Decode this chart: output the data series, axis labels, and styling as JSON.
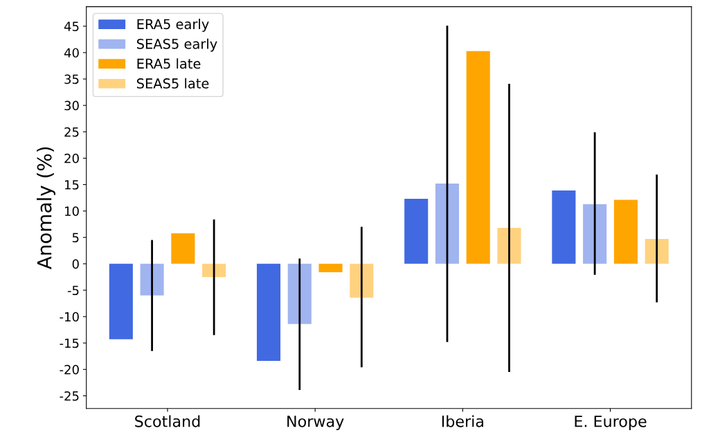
{
  "chart_data": {
    "type": "bar",
    "ylabel": "Anomaly (%)",
    "categories": [
      "Scotland",
      "Norway",
      "Iberia",
      "E. Europe"
    ],
    "series": [
      {
        "name": "ERA5 early",
        "color": "#4169e1",
        "values": [
          -14.3,
          -18.4,
          12.3,
          13.9
        ]
      },
      {
        "name": "SEAS5 early",
        "color": "#a0b4f0",
        "values": [
          -6.0,
          -11.4,
          15.2,
          11.3
        ],
        "errors": [
          [
            -16.5,
            4.5
          ],
          [
            -23.9,
            1.0
          ],
          [
            -14.8,
            45.1
          ],
          [
            -2.1,
            24.9
          ]
        ]
      },
      {
        "name": "ERA5 late",
        "color": "#ffa500",
        "values": [
          5.8,
          -1.6,
          40.3,
          12.1
        ]
      },
      {
        "name": "SEAS5 late",
        "color": "#ffd280",
        "values": [
          -2.5,
          -6.4,
          6.8,
          4.7
        ],
        "errors": [
          [
            -13.5,
            8.4
          ],
          [
            -19.6,
            7.0
          ],
          [
            -20.5,
            34.1
          ],
          [
            -7.3,
            16.9
          ]
        ]
      }
    ],
    "ylim": [
      -27.4,
      48.7
    ],
    "yticks": [
      -25,
      -20,
      -15,
      -10,
      -5,
      0,
      5,
      10,
      15,
      20,
      25,
      30,
      35,
      40,
      45
    ],
    "legend": "top left",
    "grid": false
  }
}
